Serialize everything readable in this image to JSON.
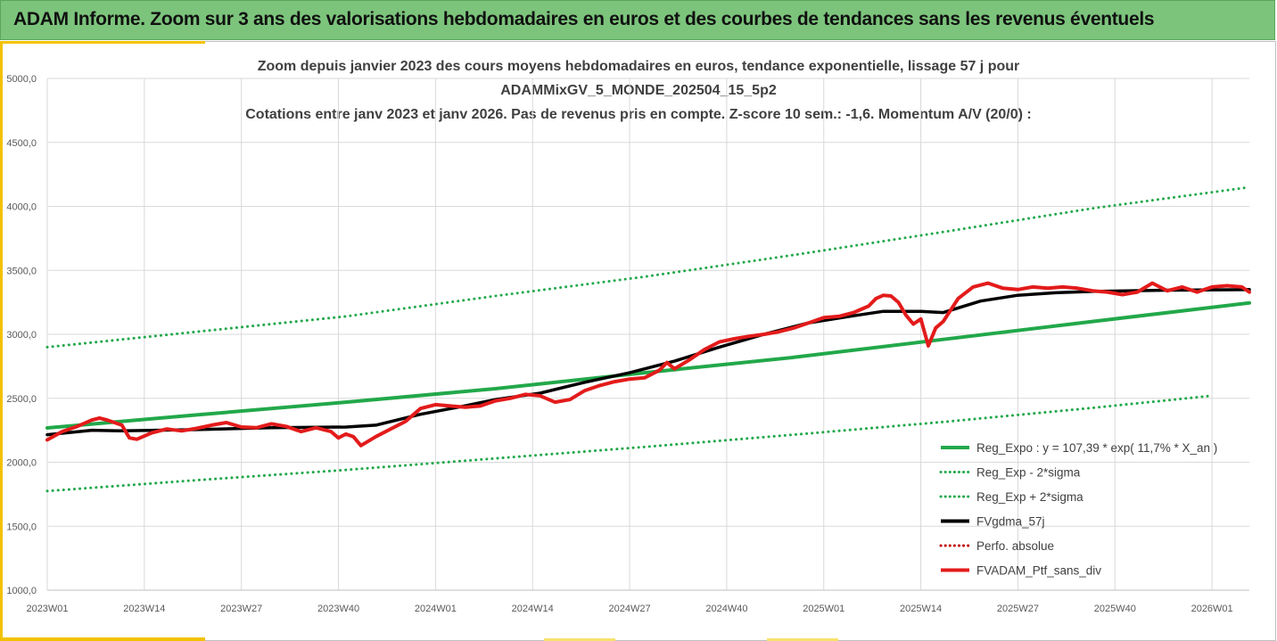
{
  "header": {
    "banner_title": "ADAM Informe. Zoom sur 3 ans des valorisations hebdomadaires en euros et des courbes de tendances sans les revenus éventuels"
  },
  "colors": {
    "banner_bg": "#7cc47c",
    "accent_yellow": "#f2c200",
    "reg_green": "#22a84a",
    "ma_black": "#000000",
    "perf_red": "#e31b1b"
  },
  "chart_data": {
    "type": "line",
    "title_lines": [
      "Zoom depuis janvier 2023 des cours moyens hebdomadaires  en euros, tendance exponentielle, lissage 57 j pour",
      "ADAMMixGV_5_MONDE_202504_15_5p2",
      "Cotations entre janv 2023 et janv 2026. Pas de revenus pris en compte. Z-score 10 sem.: -1,6. Momentum A/V (20/0) :"
    ],
    "ylim": [
      1000,
      5000
    ],
    "yticks": [
      "1000,0",
      "1500,0",
      "2000,0",
      "2500,0",
      "3000,0",
      "3500,0",
      "4000,0",
      "4500,0",
      "5000,0"
    ],
    "ytick_values": [
      1000,
      1500,
      2000,
      2500,
      3000,
      3500,
      4000,
      4500,
      5000
    ],
    "xlim": [
      0,
      161
    ],
    "xticks": [
      "2023W01",
      "2023W14",
      "2023W27",
      "2023W40",
      "2024W01",
      "2024W14",
      "2024W27",
      "2024W40",
      "2025W01",
      "2025W14",
      "2025W27",
      "2025W40",
      "2026W01"
    ],
    "xtick_weeks": [
      0,
      13,
      26,
      39,
      52,
      65,
      78,
      91,
      104,
      117,
      130,
      143,
      156
    ],
    "grid": true,
    "legend_position": "bottom-right",
    "series": [
      {
        "name": "Reg_Expo : y = 107,39 * exp( 11,7% *  X_an )",
        "style": "solid",
        "color": "#22a84a",
        "x": [
          0,
          20,
          40,
          60,
          80,
          100,
          120,
          140,
          161
        ],
        "values": [
          2268,
          2370,
          2470,
          2575,
          2700,
          2820,
          2960,
          3100,
          3245
        ]
      },
      {
        "name": "Reg_Exp - 2*sigma",
        "style": "dotted",
        "color": "#22a84a",
        "x": [
          0,
          20,
          40,
          60,
          80,
          100,
          120,
          140,
          156
        ],
        "values": [
          1775,
          1860,
          1940,
          2030,
          2120,
          2215,
          2315,
          2425,
          2520
        ]
      },
      {
        "name": "Reg_Exp + 2*sigma",
        "style": "dotted",
        "color": "#22a84a",
        "x": [
          0,
          20,
          40,
          60,
          80,
          100,
          120,
          140,
          161
        ],
        "values": [
          2900,
          3020,
          3140,
          3300,
          3450,
          3620,
          3800,
          3985,
          4150
        ]
      },
      {
        "name": "FVgdma_57j",
        "style": "solid",
        "color": "#000000",
        "x": [
          0,
          6,
          10,
          20,
          30,
          40,
          44,
          50,
          55,
          60,
          66,
          72,
          78,
          84,
          90,
          96,
          102,
          108,
          112,
          117,
          120,
          125,
          130,
          135,
          140,
          150,
          161
        ],
        "values": [
          2215,
          2250,
          2245,
          2255,
          2270,
          2275,
          2290,
          2375,
          2430,
          2490,
          2540,
          2625,
          2700,
          2790,
          2900,
          3000,
          3090,
          3145,
          3180,
          3180,
          3170,
          3260,
          3305,
          3325,
          3335,
          3345,
          3350
        ]
      },
      {
        "name": "Perfo. absolue",
        "style": "dotted",
        "color": "#c00000",
        "x": [],
        "values": []
      },
      {
        "name": "FVADAM_Ptf_sans_div",
        "style": "solid",
        "color": "#e31b1b",
        "x": [
          0,
          2,
          4,
          6,
          7,
          8,
          10,
          11,
          12,
          14,
          16,
          18,
          20,
          22,
          24,
          26,
          28,
          30,
          32,
          34,
          36,
          38,
          39,
          40,
          41,
          42,
          44,
          46,
          48,
          50,
          52,
          54,
          56,
          58,
          60,
          62,
          64,
          66,
          68,
          70,
          72,
          74,
          76,
          78,
          80,
          82,
          83,
          84,
          86,
          88,
          90,
          92,
          94,
          96,
          98,
          100,
          102,
          104,
          106,
          108,
          110,
          111,
          112,
          113,
          114,
          115,
          116,
          117,
          118,
          119,
          120,
          122,
          124,
          126,
          128,
          130,
          132,
          134,
          136,
          138,
          140,
          142,
          144,
          146,
          148,
          150,
          152,
          154,
          156,
          158,
          160,
          161
        ],
        "values": [
          2175,
          2240,
          2280,
          2330,
          2345,
          2330,
          2290,
          2190,
          2180,
          2230,
          2260,
          2245,
          2265,
          2290,
          2310,
          2275,
          2270,
          2300,
          2280,
          2240,
          2270,
          2240,
          2190,
          2220,
          2200,
          2130,
          2200,
          2260,
          2320,
          2420,
          2450,
          2440,
          2430,
          2440,
          2480,
          2500,
          2530,
          2520,
          2470,
          2490,
          2560,
          2600,
          2630,
          2650,
          2660,
          2720,
          2780,
          2730,
          2800,
          2880,
          2940,
          2965,
          2985,
          3000,
          3020,
          3050,
          3090,
          3130,
          3140,
          3170,
          3220,
          3280,
          3305,
          3300,
          3250,
          3150,
          3080,
          3120,
          2910,
          3050,
          3100,
          3280,
          3370,
          3400,
          3360,
          3350,
          3370,
          3360,
          3370,
          3360,
          3340,
          3330,
          3310,
          3330,
          3400,
          3340,
          3370,
          3330,
          3370,
          3380,
          3370,
          3330
        ]
      }
    ]
  }
}
